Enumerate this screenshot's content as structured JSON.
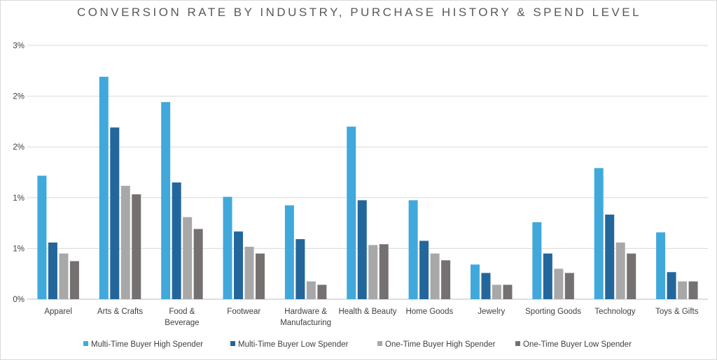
{
  "chart_data": {
    "type": "bar",
    "title": "CONVERSION RATE BY INDUSTRY, PURCHASE HISTORY & SPEND LEVEL",
    "categories": [
      "Apparel",
      "Arts & Crafts",
      "Food & Beverage",
      "Footwear",
      "Hardware & Manufacturing",
      "Health & Beauty",
      "Home Goods",
      "Jewelry",
      "Sporting Goods",
      "Technology",
      "Toys & Gifts"
    ],
    "category_lines": [
      [
        "Apparel"
      ],
      [
        "Arts & Crafts"
      ],
      [
        "Food &",
        "Beverage"
      ],
      [
        "Footwear"
      ],
      [
        "Hardware &",
        "Manufacturing"
      ],
      [
        "Health & Beauty"
      ],
      [
        "Home Goods"
      ],
      [
        "Jewelry"
      ],
      [
        "Sporting Goods"
      ],
      [
        "Technology"
      ],
      [
        "Toys & Gifts"
      ]
    ],
    "ylim": [
      0,
      3.0
    ],
    "yticks": [
      0,
      0.6,
      1.2,
      1.8,
      2.4,
      3.0
    ],
    "ytick_labels": [
      "0%",
      "1%",
      "1%",
      "2%",
      "2%",
      "3%"
    ],
    "grid": true,
    "legend": "bottom",
    "series": [
      {
        "name": "Multi-Time Buyer High Spender",
        "color": "#41a8dc",
        "values": [
          1.46,
          2.63,
          2.33,
          1.21,
          1.11,
          2.04,
          1.17,
          0.41,
          0.91,
          1.55,
          0.79
        ]
      },
      {
        "name": "Multi-Time Buyer Low Spender",
        "color": "#23669c",
        "values": [
          0.67,
          2.03,
          1.38,
          0.8,
          0.71,
          1.17,
          0.69,
          0.31,
          0.54,
          1.0,
          0.32
        ]
      },
      {
        "name": "One-Time Buyer High Spender",
        "color": "#a8a8a8",
        "values": [
          0.54,
          1.34,
          0.97,
          0.62,
          0.21,
          0.64,
          0.54,
          0.17,
          0.36,
          0.67,
          0.21
        ]
      },
      {
        "name": "One-Time Buyer Low Spender",
        "color": "#767171",
        "values": [
          0.45,
          1.24,
          0.83,
          0.54,
          0.17,
          0.65,
          0.46,
          0.17,
          0.31,
          0.54,
          0.21
        ]
      }
    ]
  }
}
